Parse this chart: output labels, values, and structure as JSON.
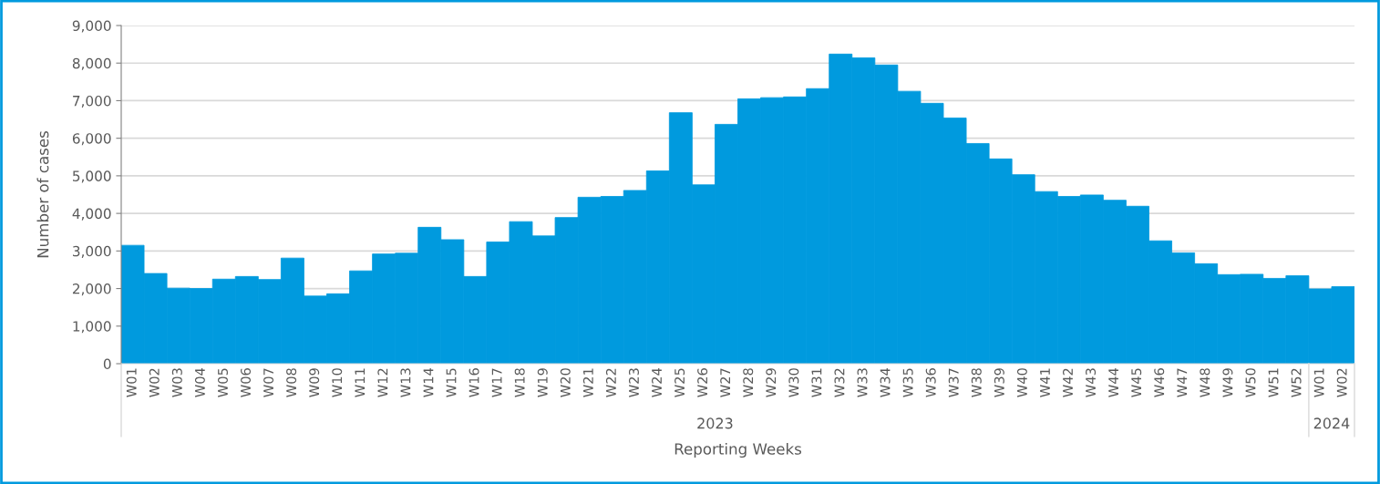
{
  "chart_data": {
    "type": "bar",
    "xlabel": "Reporting Weeks",
    "ylabel": "Number of cases",
    "categories": [
      "W01",
      "W02",
      "W03",
      "W04",
      "W05",
      "W06",
      "W07",
      "W08",
      "W09",
      "W10",
      "W11",
      "W12",
      "W13",
      "W14",
      "W15",
      "W16",
      "W17",
      "W18",
      "W19",
      "W20",
      "W21",
      "W22",
      "W23",
      "W24",
      "W25",
      "W26",
      "W27",
      "W28",
      "W29",
      "W30",
      "W31",
      "W32",
      "W33",
      "W34",
      "W35",
      "W36",
      "W37",
      "W38",
      "W39",
      "W40",
      "W41",
      "W42",
      "W43",
      "W44",
      "W45",
      "W46",
      "W47",
      "W48",
      "W49",
      "W50",
      "W51",
      "W52",
      "W01",
      "W02"
    ],
    "values": [
      3150,
      2400,
      2010,
      2000,
      2250,
      2320,
      2240,
      2810,
      1800,
      1860,
      2470,
      2920,
      2940,
      3630,
      3300,
      2320,
      3240,
      3780,
      3400,
      3890,
      4430,
      4450,
      4610,
      5130,
      6680,
      4760,
      6370,
      7050,
      7080,
      7100,
      7320,
      8240,
      8140,
      7950,
      7250,
      6930,
      6540,
      5860,
      5450,
      5030,
      4580,
      4450,
      4490,
      4350,
      4190,
      3270,
      2950,
      2660,
      2370,
      2380,
      2270,
      2340,
      1990,
      2050
    ],
    "color": "#009ade",
    "ylim": [
      0,
      9000
    ],
    "yticks": [
      {
        "value": 0,
        "label": "0"
      },
      {
        "value": 1000,
        "label": "1,000"
      },
      {
        "value": 2000,
        "label": "2,000"
      },
      {
        "value": 3000,
        "label": "3,000"
      },
      {
        "value": 4000,
        "label": "4,000"
      },
      {
        "value": 5000,
        "label": "5,000"
      },
      {
        "value": 6000,
        "label": "6,000"
      },
      {
        "value": 7000,
        "label": "7,000"
      },
      {
        "value": 8000,
        "label": "8,000"
      },
      {
        "value": 9000,
        "label": "9,000"
      }
    ],
    "grid": "y",
    "annotations": [
      "2023",
      "2024"
    ]
  }
}
